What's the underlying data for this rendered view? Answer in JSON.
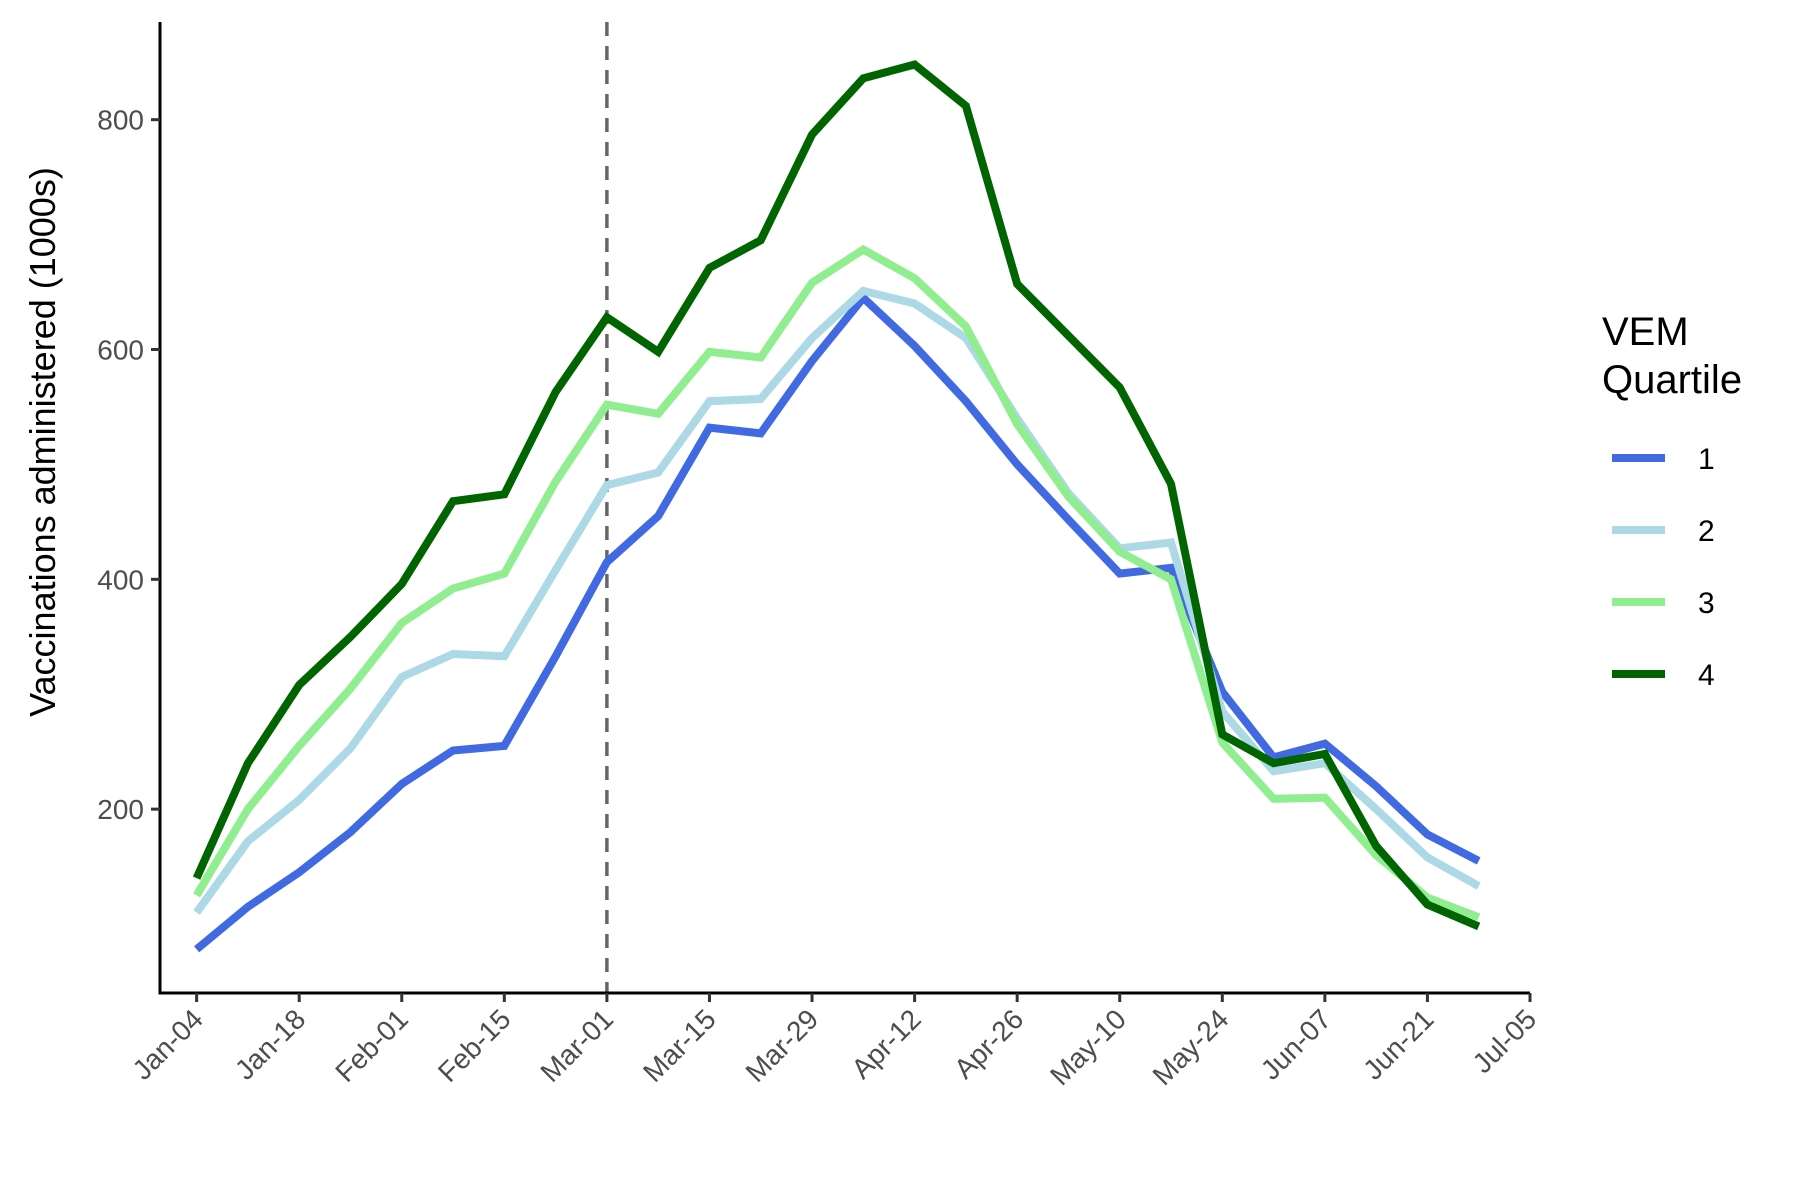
{
  "chart_data": {
    "type": "line",
    "title": "",
    "xlabel": "",
    "ylabel": "Vaccinations administered (1000s)",
    "x": [
      "2021-01-04",
      "2021-01-11",
      "2021-01-18",
      "2021-01-25",
      "2021-02-01",
      "2021-02-08",
      "2021-02-15",
      "2021-02-22",
      "2021-03-01",
      "2021-03-08",
      "2021-03-15",
      "2021-03-22",
      "2021-03-29",
      "2021-04-05",
      "2021-04-12",
      "2021-04-19",
      "2021-04-26",
      "2021-05-03",
      "2021-05-10",
      "2021-05-17",
      "2021-05-24",
      "2021-05-31",
      "2021-06-07",
      "2021-06-14",
      "2021-06-21",
      "2021-06-28"
    ],
    "x_ticks": [
      "Jan-04",
      "Jan-18",
      "Feb-01",
      "Feb-15",
      "Mar-01",
      "Mar-15",
      "Mar-29",
      "Apr-12",
      "Apr-26",
      "May-10",
      "May-24",
      "Jun-07",
      "Jun-21",
      "Jul-05"
    ],
    "x_tick_dates": [
      "2021-01-04",
      "2021-01-18",
      "2021-02-01",
      "2021-02-15",
      "2021-03-01",
      "2021-03-15",
      "2021-03-29",
      "2021-04-12",
      "2021-04-26",
      "2021-05-10",
      "2021-05-24",
      "2021-06-07",
      "2021-06-21",
      "2021-07-05"
    ],
    "x_range": [
      "2020-12-30",
      "2021-07-05"
    ],
    "y_ticks": [
      200,
      400,
      600,
      800
    ],
    "ylim": [
      40,
      885
    ],
    "grid": false,
    "vline": {
      "x": "2021-03-01",
      "style": "dashed",
      "color": "#666666"
    },
    "legend": {
      "title": [
        "VEM",
        "Quartile"
      ],
      "placement": "right"
    },
    "series": [
      {
        "name": "1",
        "color": "#4169E1",
        "values": [
          78,
          115,
          145,
          180,
          222,
          251,
          255,
          333,
          415,
          455,
          532,
          527,
          590,
          645,
          603,
          555,
          500,
          452,
          405,
          410,
          302,
          245,
          257,
          220,
          178,
          155
        ]
      },
      {
        "name": "2",
        "color": "#ADD8E6",
        "values": [
          110,
          172,
          208,
          253,
          315,
          335,
          333,
          408,
          482,
          493,
          555,
          557,
          610,
          651,
          640,
          610,
          540,
          475,
          427,
          432,
          285,
          233,
          240,
          200,
          158,
          133
        ]
      },
      {
        "name": "3",
        "color": "#90EE90",
        "values": [
          125,
          200,
          255,
          305,
          362,
          392,
          405,
          485,
          552,
          544,
          598,
          593,
          658,
          687,
          662,
          620,
          535,
          472,
          424,
          400,
          258,
          209,
          210,
          160,
          123,
          106
        ]
      },
      {
        "name": "4",
        "color": "#006400",
        "values": [
          140,
          240,
          308,
          350,
          396,
          468,
          474,
          563,
          628,
          598,
          671,
          695,
          787,
          836,
          848,
          812,
          657,
          612,
          567,
          483,
          265,
          240,
          248,
          168,
          117,
          98
        ]
      }
    ]
  }
}
